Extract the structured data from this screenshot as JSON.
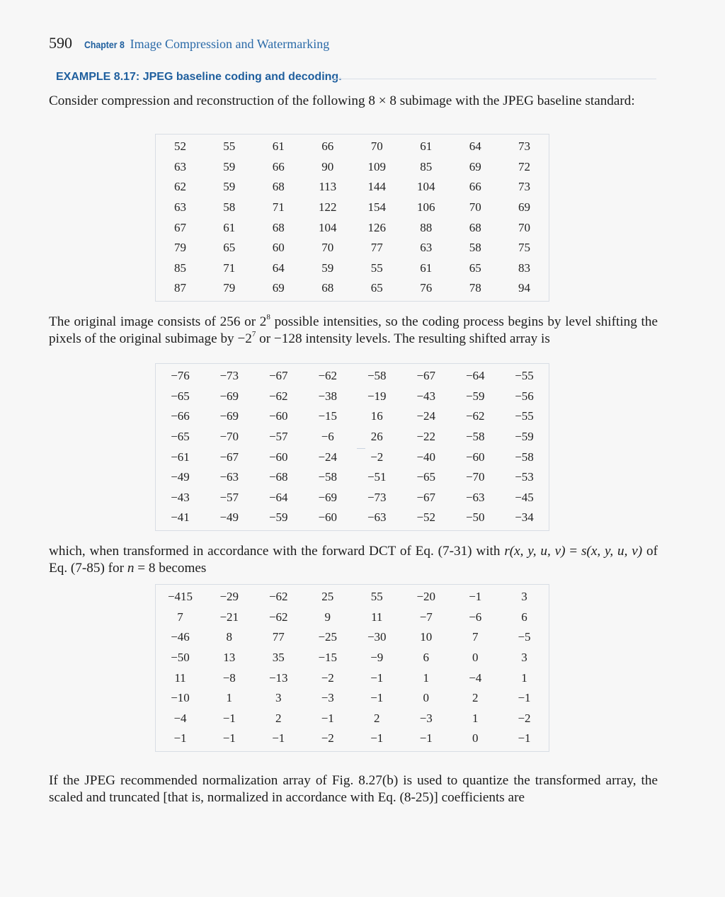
{
  "header": {
    "page_number": "590",
    "chapter_label": "Chapter 8",
    "chapter_title": "Image Compression and Watermarking"
  },
  "example_title": "EXAMPLE 8.17: JPEG baseline coding and decoding.",
  "paragraphs": {
    "p1": "Consider compression and reconstruction of the following 8 × 8 subimage with the JPEG baseline standard:",
    "p2": {
      "before_sup1": "The original image consists of 256 or 2",
      "sup1": "8",
      "after_sup1": " possible intensities, so the coding process begins by level shifting the pixels of the original subimage by −2",
      "sup2": "7",
      "after_sup2": " or −128 intensity levels. The resulting shifted array is"
    },
    "p3": {
      "part1": "which, when transformed in accordance with the forward DCT of Eq. (7-31) with ",
      "r_expr": "r(x, y, u, v)",
      "equals": " = ",
      "s_expr": "s(x, y, u, v)",
      "part2": " of Eq. (7-85) for ",
      "n_var": "n",
      "part3": " = 8 becomes"
    },
    "p4": "If the JPEG recommended normalization array of Fig. 8.27(b) is used to quantize the transformed array, the scaled and truncated [that is, normalized in accordance with Eq. (8-25)] coefficients are"
  },
  "tables": {
    "original": [
      [
        "52",
        "55",
        "61",
        "66",
        "70",
        "61",
        "64",
        "73"
      ],
      [
        "63",
        "59",
        "66",
        "90",
        "109",
        "85",
        "69",
        "72"
      ],
      [
        "62",
        "59",
        "68",
        "113",
        "144",
        "104",
        "66",
        "73"
      ],
      [
        "63",
        "58",
        "71",
        "122",
        "154",
        "106",
        "70",
        "69"
      ],
      [
        "67",
        "61",
        "68",
        "104",
        "126",
        "88",
        "68",
        "70"
      ],
      [
        "79",
        "65",
        "60",
        "70",
        "77",
        "63",
        "58",
        "75"
      ],
      [
        "85",
        "71",
        "64",
        "59",
        "55",
        "61",
        "65",
        "83"
      ],
      [
        "87",
        "79",
        "69",
        "68",
        "65",
        "76",
        "78",
        "94"
      ]
    ],
    "shifted": [
      [
        "−76",
        "−73",
        "−67",
        "−62",
        "−58",
        "−67",
        "−64",
        "−55"
      ],
      [
        "−65",
        "−69",
        "−62",
        "−38",
        "−19",
        "−43",
        "−59",
        "−56"
      ],
      [
        "−66",
        "−69",
        "−60",
        "−15",
        "16",
        "−24",
        "−62",
        "−55"
      ],
      [
        "−65",
        "−70",
        "−57",
        "−6",
        "26",
        "−22",
        "−58",
        "−59"
      ],
      [
        "−61",
        "−67",
        "−60",
        "−24",
        "−2",
        "−40",
        "−60",
        "−58"
      ],
      [
        "−49",
        "−63",
        "−68",
        "−58",
        "−51",
        "−65",
        "−70",
        "−53"
      ],
      [
        "−43",
        "−57",
        "−64",
        "−69",
        "−73",
        "−67",
        "−63",
        "−45"
      ],
      [
        "−41",
        "−49",
        "−59",
        "−60",
        "−63",
        "−52",
        "−50",
        "−34"
      ]
    ],
    "dct": [
      [
        "−415",
        "−29",
        "−62",
        "25",
        "55",
        "−20",
        "−1",
        "3"
      ],
      [
        "7",
        "−21",
        "−62",
        "9",
        "11",
        "−7",
        "−6",
        "6"
      ],
      [
        "−46",
        "8",
        "77",
        "−25",
        "−30",
        "10",
        "7",
        "−5"
      ],
      [
        "−50",
        "13",
        "35",
        "−15",
        "−9",
        "6",
        "0",
        "3"
      ],
      [
        "11",
        "−8",
        "−13",
        "−2",
        "−1",
        "1",
        "−4",
        "1"
      ],
      [
        "−10",
        "1",
        "3",
        "−3",
        "−1",
        "0",
        "2",
        "−1"
      ],
      [
        "−4",
        "−1",
        "2",
        "−1",
        "2",
        "−3",
        "1",
        "−2"
      ],
      [
        "−1",
        "−1",
        "−1",
        "−2",
        "−1",
        "−1",
        "0",
        "−1"
      ]
    ]
  }
}
